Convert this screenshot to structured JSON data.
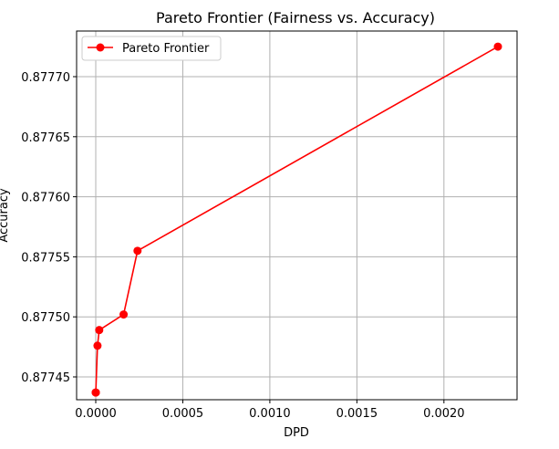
{
  "chart_data": {
    "type": "line",
    "title": "Pareto Frontier (Fairness vs. Accuracy)",
    "xlabel": "DPD",
    "ylabel": "Accuracy",
    "xlim": [
      -0.00011,
      0.00242
    ],
    "ylim": [
      0.877431,
      0.877738
    ],
    "xticks": [
      0.0,
      0.0005,
      0.001,
      0.0015,
      0.002
    ],
    "xtick_labels": [
      "0.0000",
      "0.0005",
      "0.0010",
      "0.0015",
      "0.0020"
    ],
    "yticks": [
      0.87745,
      0.8775,
      0.87755,
      0.8776,
      0.87765,
      0.8777
    ],
    "ytick_labels": [
      "0.87745",
      "0.87750",
      "0.87755",
      "0.87760",
      "0.87765",
      "0.87770"
    ],
    "grid": true,
    "legend_position": "top-left",
    "series": [
      {
        "name": "Pareto Frontier",
        "color": "#ff0000",
        "marker": "circle",
        "points": [
          {
            "x": 0.0,
            "y": 0.877437
          },
          {
            "x": 2e-07,
            "y": 0.877437
          },
          {
            "x": 1e-05,
            "y": 0.877476
          },
          {
            "x": 2e-05,
            "y": 0.877489
          },
          {
            "x": 0.00016,
            "y": 0.877502
          },
          {
            "x": 0.00024,
            "y": 0.877555
          },
          {
            "x": 0.00231,
            "y": 0.877725
          }
        ]
      }
    ]
  }
}
